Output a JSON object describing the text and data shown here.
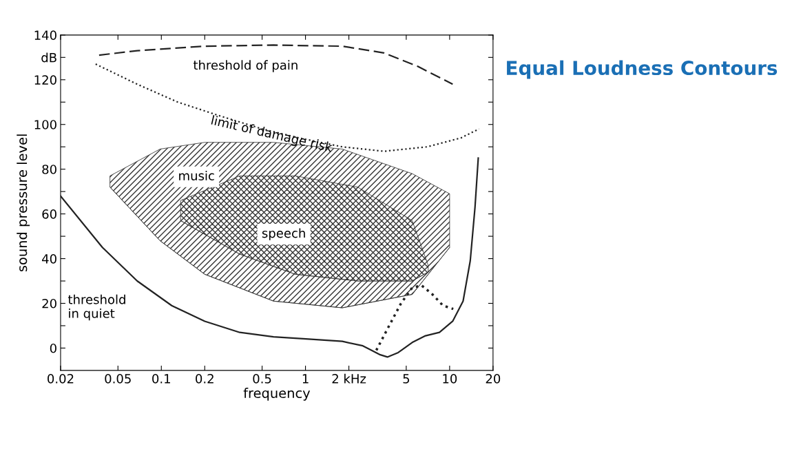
{
  "chart_data": {
    "type": "line",
    "title": "Equal Loudness Contours",
    "xlabel": "frequency",
    "ylabel": "sound pressure level",
    "log": "x",
    "xlim": [
      0.02,
      20
    ],
    "ylim": [
      -10,
      140
    ],
    "xticks": [
      0.02,
      0.05,
      0.1,
      0.2,
      0.5,
      1,
      {
        "value": 2,
        "label": "2 kHz"
      },
      5,
      10,
      20
    ],
    "yticks": [
      0,
      {
        "value": 10,
        "label": null
      },
      20,
      {
        "value": 30,
        "label": null
      },
      40,
      {
        "value": 50,
        "label": null
      },
      60,
      {
        "value": 70,
        "label": null
      },
      80,
      {
        "value": 90,
        "label": null
      },
      100,
      {
        "value": 110,
        "label": null
      },
      120,
      {
        "value": 130,
        "label": "dB"
      },
      140
    ],
    "grid": false,
    "legend": false,
    "marker": "none",
    "series": [
      {
        "name": "threshold of pain",
        "color": "#222222",
        "line_style": "dashed",
        "x": [
          0.037,
          0.068,
          0.2,
          0.6,
          1.8,
          3.5,
          6,
          10.5
        ],
        "values": [
          131,
          133,
          135,
          135.5,
          135,
          132,
          126,
          118
        ]
      },
      {
        "name": "limit of damage risk",
        "color": "#222222",
        "line_style": "dotted",
        "x": [
          0.035,
          0.068,
          0.13,
          0.25,
          0.5,
          0.9,
          1.8,
          3.5,
          7,
          12,
          16
        ],
        "values": [
          127,
          118,
          110,
          104,
          98,
          94,
          90,
          88,
          90,
          94,
          98
        ]
      },
      {
        "name": "threshold\nin quiet",
        "color": "#222222",
        "line_style": "solid",
        "x": [
          0.02,
          0.039,
          0.068,
          0.118,
          0.2,
          0.35,
          0.6,
          1.05,
          1.8,
          2.5,
          3.3,
          3.7,
          4.4,
          5.5,
          6.8,
          8.5,
          10.5,
          12.4,
          13.9,
          15,
          15.8
        ],
        "values": [
          68,
          45,
          30,
          19,
          12,
          7,
          5,
          4,
          3,
          1,
          -3,
          -4,
          -2,
          2.5,
          5.5,
          7,
          12,
          21,
          39,
          63,
          85
        ]
      },
      {
        "color": "#222222",
        "line_style": "dotted",
        "x": [
          3.1,
          3.7,
          4.6,
          5.5,
          6.4,
          7.6,
          9,
          10.6
        ],
        "values": [
          -1,
          8.5,
          20,
          27,
          28,
          24,
          19,
          17.5
        ]
      },
      {
        "name": "music",
        "type": "area",
        "color": "#333333",
        "x": [
          0.044,
          0.098,
          0.2,
          0.6,
          1.8,
          5.5,
          10
        ],
        "values": [
          77,
          89,
          92,
          92,
          89,
          78,
          69
        ]
      },
      {
        "type": "line",
        "color": "#333333",
        "line_style": "solid",
        "x": [
          0.044,
          0.098,
          0.2,
          0.6,
          1.8,
          5.5,
          10
        ],
        "values": [
          72,
          48,
          33,
          21,
          18,
          24,
          45
        ]
      },
      {
        "name": "speech",
        "type": "area",
        "color": "#333333",
        "x": [
          0.136,
          0.35,
          0.85,
          2.3,
          5.5,
          7.1
        ],
        "values": [
          66,
          77,
          77,
          72,
          57,
          37
        ]
      },
      {
        "type": "line",
        "color": "#333333",
        "line_style": "solid",
        "x": [
          0.136,
          0.35,
          0.85,
          2.3,
          5.5,
          7.1
        ],
        "values": [
          57,
          42,
          33,
          30,
          30,
          34
        ]
      }
    ]
  }
}
